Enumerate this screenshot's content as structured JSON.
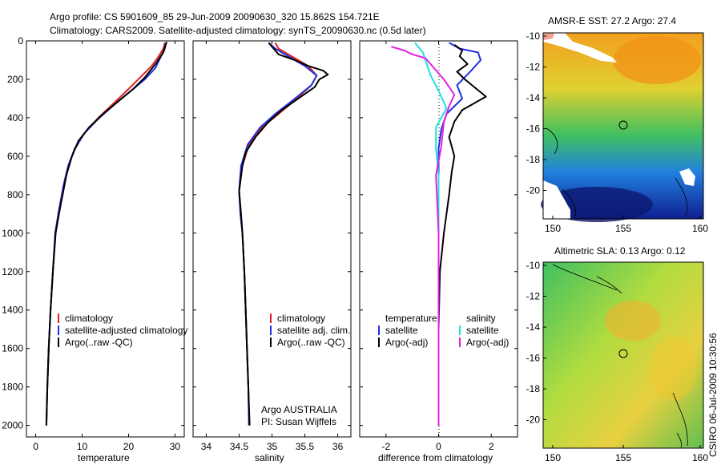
{
  "title_line1": "Argo profile: CS 5901609_85 29-Jun-2009 20090630_320 15.862S 154.721E",
  "title_line2": "Climatology: CARS2009. Satellite-adjusted climatology: synTS_20090630.nc (0.5d later)",
  "credit": "CSIRO 06-Jul-2009 10:30:56",
  "colors": {
    "clim": "#e02020",
    "sat": "#2030e0",
    "argo": "#000000",
    "sat_s": "#20e0e0",
    "argo_s": "#e020e0"
  },
  "chart_data": [
    {
      "type": "line",
      "id": "temperature",
      "xlabel": "temperature",
      "ylabel": "",
      "xlim": [
        -2,
        32
      ],
      "ylim": [
        0,
        2060
      ],
      "y_reversed": true,
      "xticks": [
        0,
        10,
        20,
        30
      ],
      "yticks": [
        0,
        200,
        400,
        600,
        800,
        1000,
        1200,
        1400,
        1600,
        1800,
        2000
      ],
      "legend": {
        "items": [
          "climatology",
          "satellite-adjusted climatology",
          "Argo(..raw -QC)"
        ],
        "placement": "lower-middle"
      },
      "series": [
        {
          "name": "climatology",
          "color_key": "clim",
          "points": [
            [
              27.8,
              10
            ],
            [
              27.5,
              40
            ],
            [
              26.5,
              80
            ],
            [
              25,
              130
            ],
            [
              22.5,
              190
            ],
            [
              20,
              250
            ],
            [
              17,
              320
            ],
            [
              13.5,
              400
            ],
            [
              10.5,
              480
            ],
            [
              8.5,
              560
            ],
            [
              7,
              650
            ],
            [
              6,
              750
            ],
            [
              5,
              880
            ],
            [
              4.2,
              1000
            ],
            [
              3.7,
              1200
            ],
            [
              3.2,
              1400
            ],
            [
              2.8,
              1600
            ],
            [
              2.5,
              1800
            ],
            [
              2.3,
              2000
            ]
          ]
        },
        {
          "name": "satellite-adjusted climatology",
          "color_key": "sat",
          "points": [
            [
              28,
              10
            ],
            [
              27.8,
              40
            ],
            [
              27,
              80
            ],
            [
              25.8,
              140
            ],
            [
              23.5,
              200
            ],
            [
              20.5,
              260
            ],
            [
              17,
              330
            ],
            [
              13.5,
              405
            ],
            [
              10.5,
              480
            ],
            [
              8.4,
              560
            ],
            [
              7,
              650
            ],
            [
              6,
              750
            ],
            [
              5,
              880
            ],
            [
              4.2,
              1000
            ],
            [
              3.7,
              1200
            ],
            [
              3.2,
              1400
            ],
            [
              2.8,
              1600
            ],
            [
              2.5,
              1800
            ],
            [
              2.3,
              2000
            ]
          ]
        },
        {
          "name": "Argo(..raw -QC)",
          "color_key": "argo",
          "points": [
            [
              28.2,
              5
            ],
            [
              27.5,
              60
            ],
            [
              25.8,
              120
            ],
            [
              23.5,
              190
            ],
            [
              21,
              250
            ],
            [
              17.5,
              320
            ],
            [
              14.5,
              380
            ],
            [
              11.5,
              450
            ],
            [
              9.2,
              520
            ],
            [
              7.8,
              600
            ],
            [
              6.6,
              700
            ],
            [
              5.8,
              800
            ],
            [
              5,
              900
            ],
            [
              4.3,
              1000
            ],
            [
              3.7,
              1200
            ],
            [
              3.2,
              1400
            ],
            [
              2.8,
              1600
            ],
            [
              2.5,
              1800
            ],
            [
              2.3,
              2000
            ]
          ]
        }
      ]
    },
    {
      "type": "line",
      "id": "salinity",
      "xlabel": "salinity",
      "ylabel": "",
      "xlim": [
        33.8,
        36.2
      ],
      "ylim": [
        0,
        2060
      ],
      "y_reversed": true,
      "xticks": [
        34,
        34.5,
        35,
        35.5,
        36
      ],
      "yticks": [
        0,
        200,
        400,
        600,
        800,
        1000,
        1200,
        1400,
        1600,
        1800,
        2000
      ],
      "legend": {
        "items": [
          "climatology",
          "satellite adj. clim.",
          "Argo(..raw -QC)"
        ],
        "placement": "lower-middle"
      },
      "annotations": [
        "Argo AUSTRALIA",
        "PI: Susan Wijffels"
      ],
      "series": [
        {
          "name": "climatology",
          "color_key": "clim",
          "points": [
            [
              35.05,
              10
            ],
            [
              35.1,
              40
            ],
            [
              35.3,
              80
            ],
            [
              35.55,
              130
            ],
            [
              35.68,
              180
            ],
            [
              35.6,
              230
            ],
            [
              35.38,
              300
            ],
            [
              35.1,
              380
            ],
            [
              34.85,
              450
            ],
            [
              34.65,
              540
            ],
            [
              34.55,
              650
            ],
            [
              34.5,
              780
            ],
            [
              34.52,
              900
            ],
            [
              34.55,
              1000
            ],
            [
              34.58,
              1200
            ],
            [
              34.6,
              1400
            ],
            [
              34.62,
              1600
            ],
            [
              34.64,
              1800
            ],
            [
              34.65,
              2000
            ]
          ]
        },
        {
          "name": "satellite adj. clim.",
          "color_key": "sat",
          "points": [
            [
              34.95,
              10
            ],
            [
              35.05,
              40
            ],
            [
              35.25,
              80
            ],
            [
              35.5,
              130
            ],
            [
              35.68,
              180
            ],
            [
              35.6,
              230
            ],
            [
              35.35,
              300
            ],
            [
              35.05,
              380
            ],
            [
              34.82,
              450
            ],
            [
              34.63,
              540
            ],
            [
              34.53,
              650
            ],
            [
              34.5,
              780
            ],
            [
              34.52,
              900
            ],
            [
              34.55,
              1000
            ],
            [
              34.58,
              1200
            ],
            [
              34.6,
              1400
            ],
            [
              34.62,
              1600
            ],
            [
              34.64,
              1800
            ],
            [
              34.65,
              2000
            ]
          ]
        },
        {
          "name": "Argo(..raw -QC)",
          "color_key": "argo",
          "points": [
            [
              34.95,
              10
            ],
            [
              35.1,
              70
            ],
            [
              35.35,
              100
            ],
            [
              35.55,
              130
            ],
            [
              35.78,
              155
            ],
            [
              35.85,
              175
            ],
            [
              35.72,
              200
            ],
            [
              35.65,
              240
            ],
            [
              35.4,
              300
            ],
            [
              35.15,
              360
            ],
            [
              34.95,
              420
            ],
            [
              34.75,
              500
            ],
            [
              34.6,
              580
            ],
            [
              34.55,
              650
            ],
            [
              34.5,
              780
            ],
            [
              34.53,
              900
            ],
            [
              34.55,
              1000
            ],
            [
              34.58,
              1200
            ],
            [
              34.6,
              1400
            ],
            [
              34.62,
              1600
            ],
            [
              34.64,
              1800
            ],
            [
              34.66,
              2000
            ]
          ]
        }
      ]
    },
    {
      "type": "line",
      "id": "difference",
      "xlabel": "difference from climatology",
      "ylabel": "",
      "xlim": [
        -3,
        3
      ],
      "ylim": [
        0,
        2060
      ],
      "y_reversed": true,
      "xticks": [
        -2,
        0,
        2
      ],
      "yticks": [
        0,
        200,
        400,
        600,
        800,
        1000,
        1200,
        1400,
        1600,
        1800,
        2000
      ],
      "legend": {
        "col1_header": "temperature",
        "col2_header": "salinity",
        "col1_items": [
          "satellite",
          "Argo(-adj)"
        ],
        "col2_items": [
          "satellite",
          "Argo(-adj)"
        ],
        "placement": "lower"
      },
      "series": [
        {
          "name": "T satellite",
          "color_key": "sat",
          "points": [
            [
              0.4,
              10
            ],
            [
              0.8,
              40
            ],
            [
              1.5,
              60
            ],
            [
              1.6,
              100
            ],
            [
              1.2,
              160
            ],
            [
              0.7,
              230
            ],
            [
              0.9,
              300
            ],
            [
              0.3,
              380
            ],
            [
              0.1,
              460
            ],
            [
              0,
              560
            ],
            [
              0,
              700
            ],
            [
              0,
              1000
            ],
            [
              0,
              1500
            ],
            [
              0,
              2000
            ]
          ]
        },
        {
          "name": "T Argo(-adj)",
          "color_key": "argo",
          "points": [
            [
              0.6,
              20
            ],
            [
              0.9,
              50
            ],
            [
              0.8,
              80
            ],
            [
              1.1,
              120
            ],
            [
              0.7,
              160
            ],
            [
              1.0,
              200
            ],
            [
              1.8,
              290
            ],
            [
              0.9,
              360
            ],
            [
              0.6,
              420
            ],
            [
              0.4,
              500
            ],
            [
              0.6,
              600
            ],
            [
              0.5,
              680
            ],
            [
              0.4,
              800
            ],
            [
              0.2,
              1000
            ],
            [
              0.05,
              1200
            ],
            [
              0,
              1500
            ],
            [
              0,
              2000
            ]
          ]
        },
        {
          "name": "S satellite",
          "color_key": "sat_s",
          "points": [
            [
              -0.9,
              10
            ],
            [
              -0.6,
              60
            ],
            [
              -0.5,
              100
            ],
            [
              -0.3,
              180
            ],
            [
              0,
              260
            ],
            [
              0.3,
              350
            ],
            [
              -0.1,
              450
            ],
            [
              -0.1,
              560
            ],
            [
              0,
              700
            ],
            [
              0,
              1000
            ],
            [
              0,
              1500
            ],
            [
              0,
              2000
            ]
          ]
        },
        {
          "name": "S Argo(-adj)",
          "color_key": "argo_s",
          "points": [
            [
              -1.8,
              30
            ],
            [
              -1.3,
              50
            ],
            [
              -1.0,
              70
            ],
            [
              -0.5,
              90
            ],
            [
              0.2,
              200
            ],
            [
              0.6,
              280
            ],
            [
              0.4,
              340
            ],
            [
              0.2,
              420
            ],
            [
              0.1,
              550
            ],
            [
              -0.1,
              700
            ],
            [
              0,
              1000
            ],
            [
              0,
              1300
            ],
            [
              0,
              1500
            ],
            [
              0,
              2000
            ]
          ]
        }
      ]
    }
  ],
  "maps": [
    {
      "title": "AMSR-E SST: 27.2 Argo: 27.4",
      "lon_ticks": [
        "150",
        "155",
        "160"
      ],
      "lat_ticks": [
        "-10",
        "-12",
        "-14",
        "-16",
        "-18",
        "-20"
      ]
    },
    {
      "title": "Altimetric SLA: 0.13 Argo: 0.12",
      "lon_ticks": [
        "150",
        "155",
        "160"
      ],
      "lat_ticks": [
        "-10",
        "-12",
        "-14",
        "-16",
        "-18",
        "-20"
      ]
    }
  ]
}
